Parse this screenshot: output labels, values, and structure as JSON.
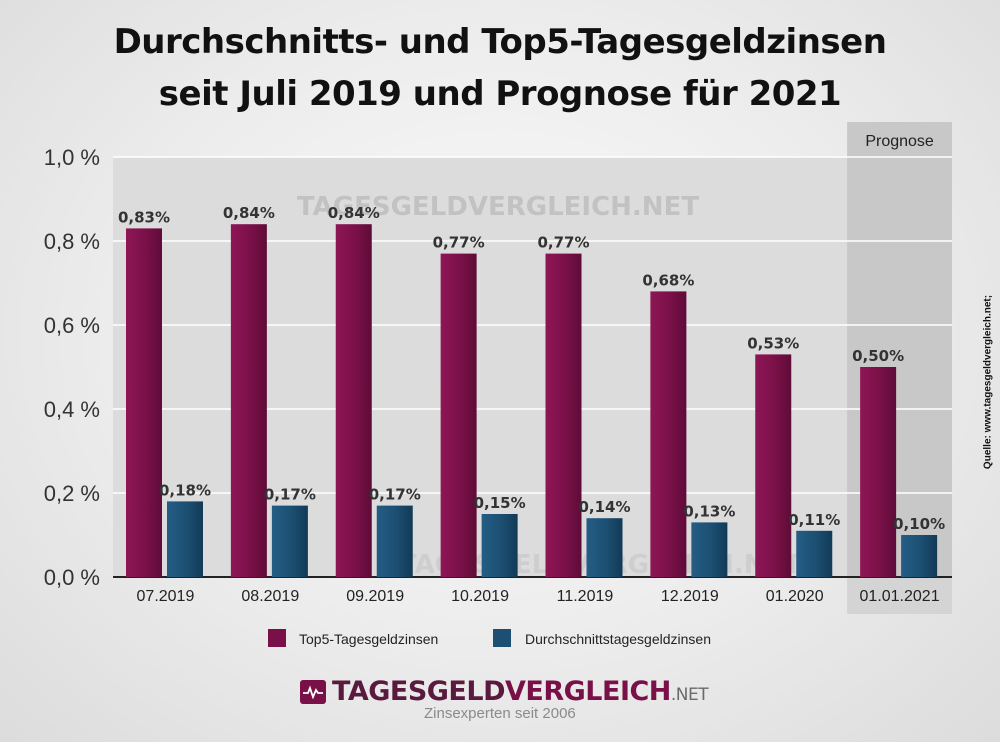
{
  "chart_data": {
    "type": "bar",
    "title": "Durchschnitts- und Top5-Tagesgeldzinsen",
    "subtitle": "seit Juli 2019 und Prognose für 2021",
    "categories": [
      "07.2019",
      "08.2019",
      "09.2019",
      "10.2019",
      "11.2019",
      "12.2019",
      "01.2020",
      "01.01.2021"
    ],
    "series": [
      {
        "name": "Top5-Tagesgeldzinsen",
        "color": "#7a1048",
        "values": [
          0.83,
          0.84,
          0.84,
          0.77,
          0.77,
          0.68,
          0.53,
          0.5
        ],
        "labels": [
          "0,83%",
          "0,84%",
          "0,84%",
          "0,77%",
          "0,77%",
          "0,68%",
          "0,53%",
          "0,50%"
        ]
      },
      {
        "name": "Durchschnittstagesgeldzinsen",
        "color": "#1c4f72",
        "values": [
          0.18,
          0.17,
          0.17,
          0.15,
          0.14,
          0.13,
          0.11,
          0.1
        ],
        "labels": [
          "0,18%",
          "0,17%",
          "0,17%",
          "0,15%",
          "0,14%",
          "0,13%",
          "0,11%",
          "0,10%"
        ]
      }
    ],
    "ylim": [
      0,
      1.0
    ],
    "yticks": [
      0,
      0.2,
      0.4,
      0.6,
      0.8,
      1.0
    ],
    "ytick_labels": [
      "0,0 %",
      "0,2 %",
      "0,4 %",
      "0,6 %",
      "0,8 %",
      "1,0 %"
    ],
    "grid": true,
    "forecast_label": "Prognose",
    "forecast_category": "01.01.2021",
    "legend_position": "bottom",
    "watermark": "TAGESGELDVERGLEICH.NET",
    "source": "Quelle: www.tagesgeldvergleich.net;"
  },
  "logo": {
    "part1": "TAGESGELD",
    "part2": "VERGLEICH",
    "part3": ".NET",
    "tagline": "Zinsexperten seit 2006"
  }
}
